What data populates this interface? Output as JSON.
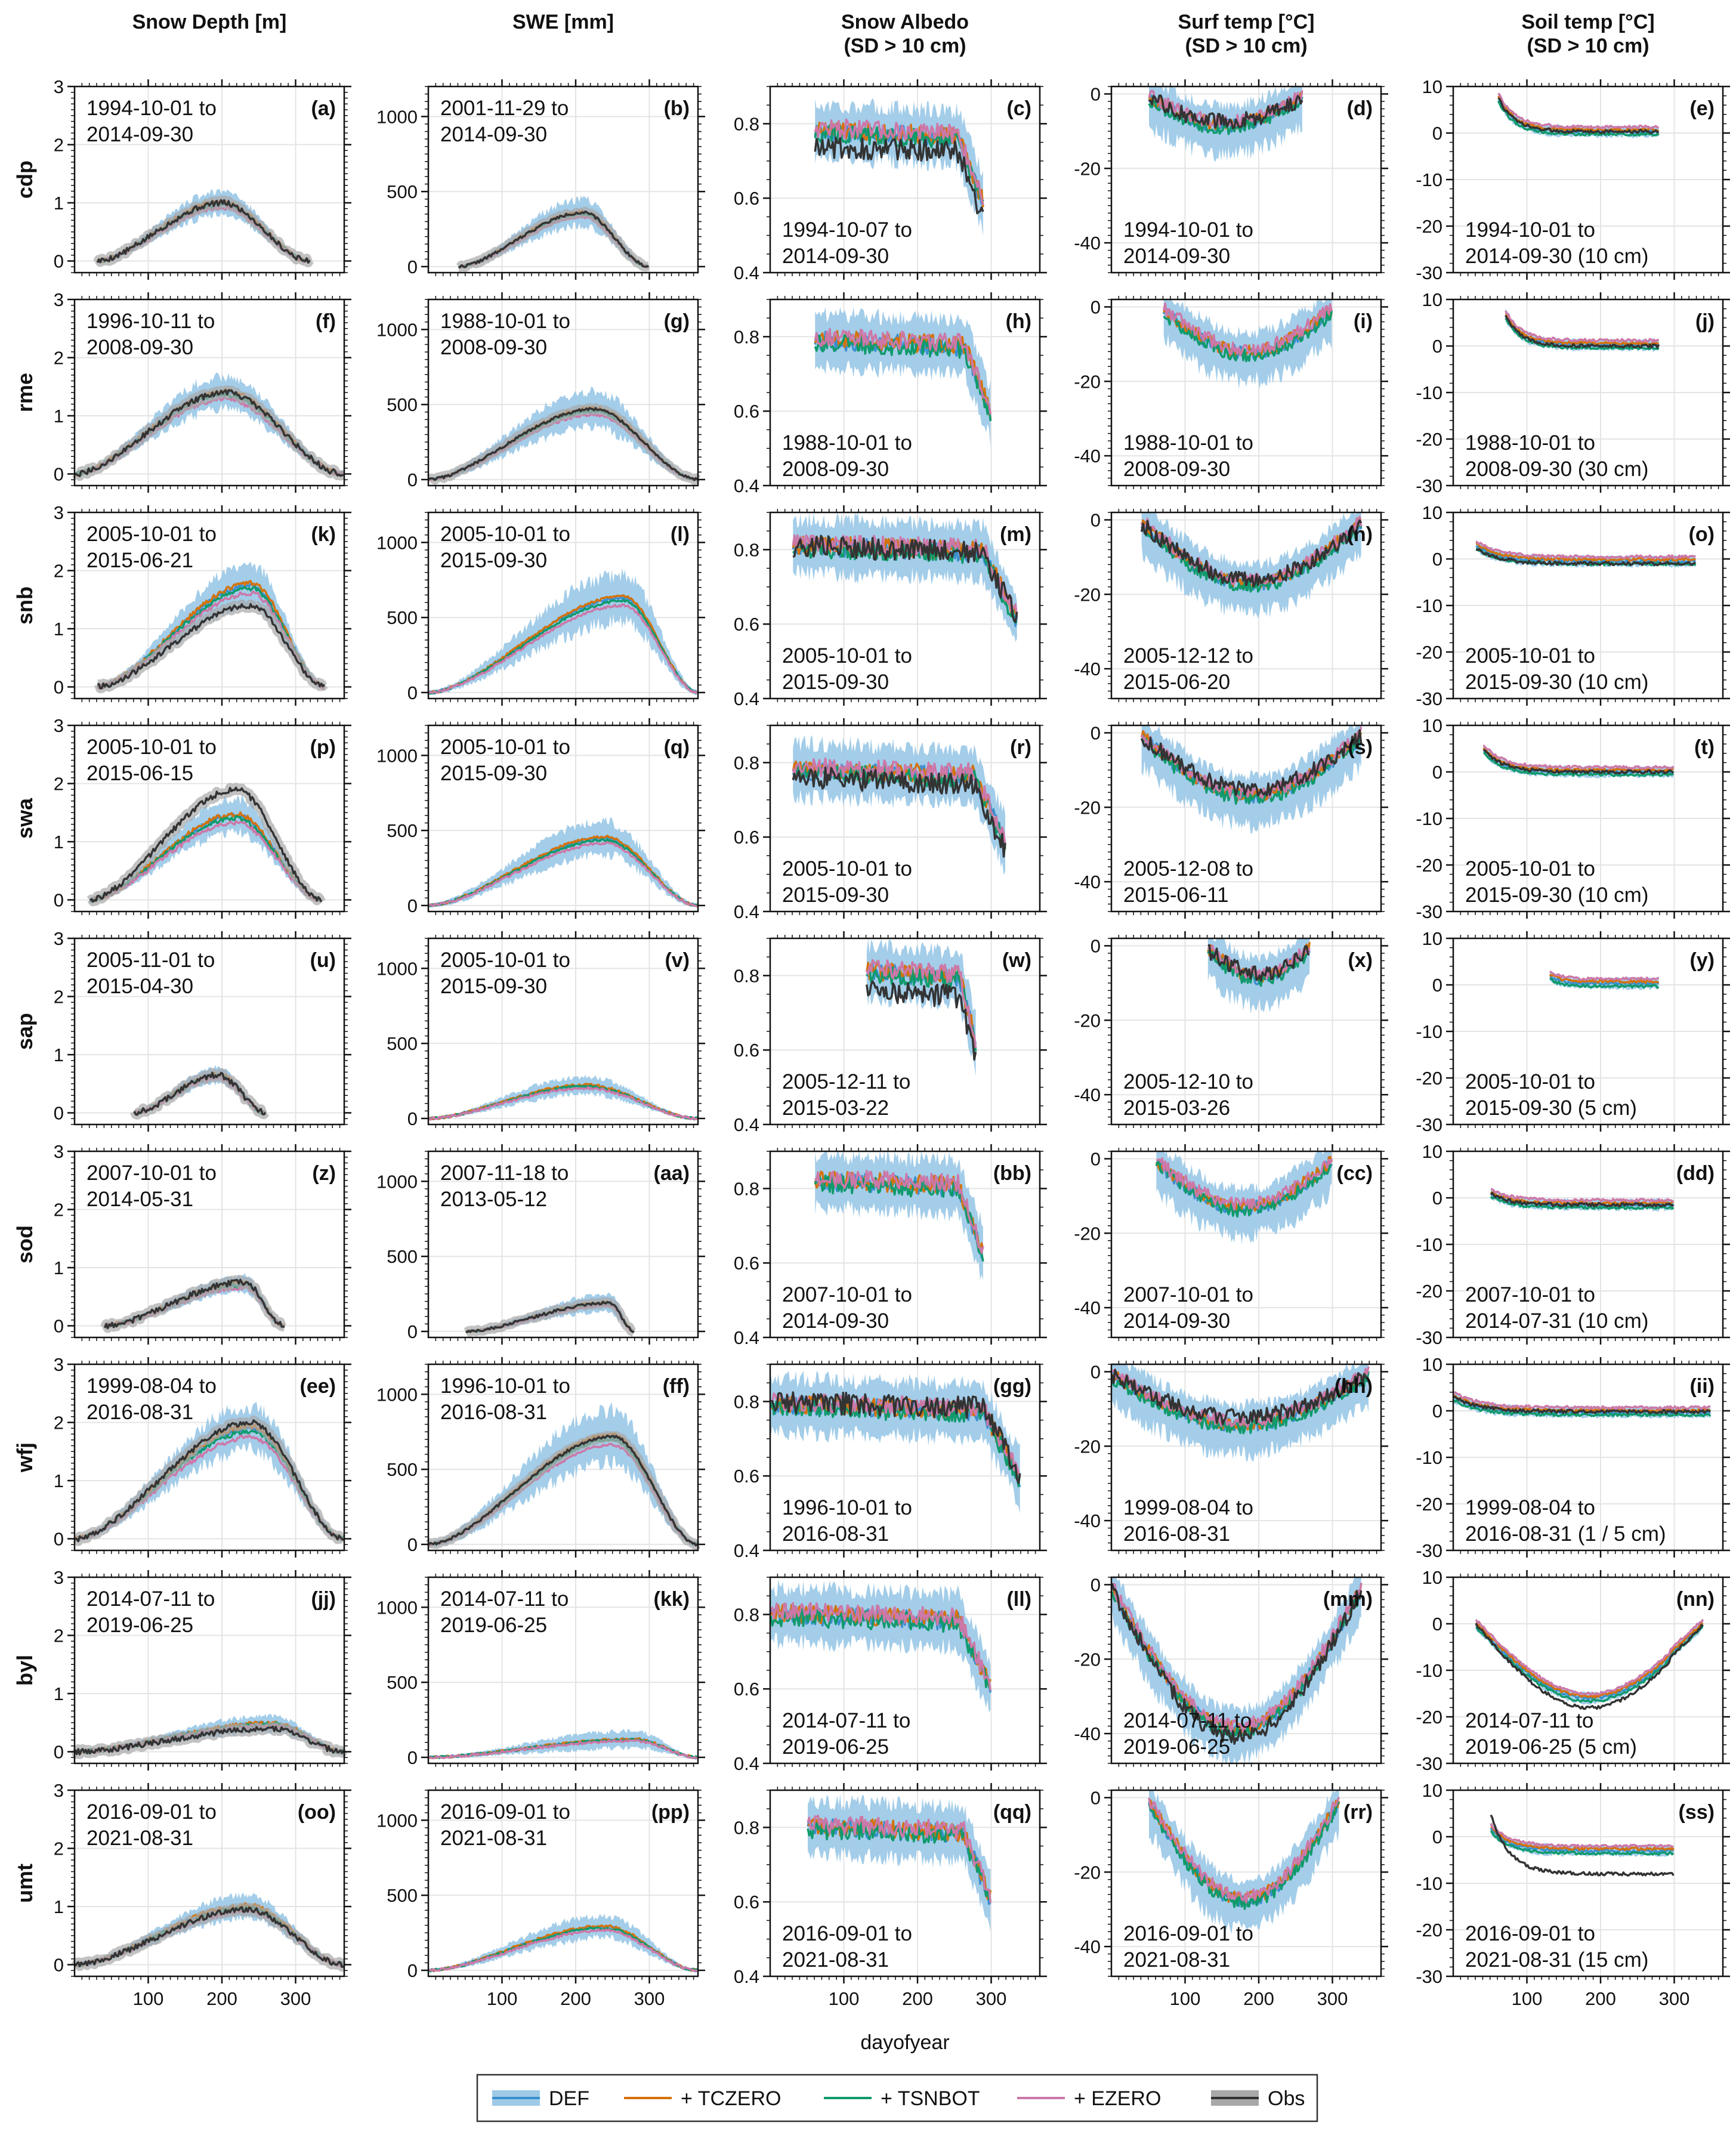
{
  "figure": {
    "xlabel": "dayofyear",
    "columns": [
      {
        "title": [
          "Snow Depth [m]"
        ],
        "ylim": [
          -0.2,
          3
        ],
        "yticks": [
          0,
          1,
          2,
          3
        ],
        "minor": 0.1
      },
      {
        "title": [
          "SWE [mm]"
        ],
        "ylim": [
          -40,
          1200
        ],
        "yticks": [
          0,
          500,
          1000
        ],
        "minor": 50
      },
      {
        "title": [
          "Snow Albedo",
          "(SD > 10 cm)"
        ],
        "ylim": [
          0.4,
          0.9
        ],
        "yticks": [
          0.4,
          0.6,
          0.8
        ],
        "minor": 0.05
      },
      {
        "title": [
          "Surf temp [°C]",
          "(SD > 10 cm)"
        ],
        "ylim": [
          -48,
          2
        ],
        "yticks": [
          -40,
          -20,
          0
        ],
        "minor": 2
      },
      {
        "title": [
          "Soil temp [°C]",
          "(SD > 10 cm)"
        ],
        "ylim": [
          -30,
          10
        ],
        "yticks": [
          -30,
          -20,
          -10,
          0,
          10
        ],
        "minor": 2
      }
    ],
    "xlim": [
      0,
      366
    ],
    "xticks": [
      100,
      200,
      300
    ],
    "legend": [
      {
        "label": "DEF",
        "color": "#3b8fcf",
        "band": "#9ecae8"
      },
      {
        "label": "+ TCZERO",
        "color": "#d4720c"
      },
      {
        "label": "+ TSNBOT",
        "color": "#109a6c"
      },
      {
        "label": "+ EZERO",
        "color": "#cc78a8"
      },
      {
        "label": "Obs",
        "color": "#333333",
        "band": "#a8a8a8"
      }
    ]
  },
  "chart_data": {
    "type": "line",
    "x_label": "dayofyear",
    "sites": [
      {
        "name": "cdp",
        "panels": [
          {
            "letter": "(a)",
            "period": [
              "1994-10-01 to",
              "2014-09-30"
            ],
            "start": 30,
            "peak_day": 200,
            "end": 320,
            "peak": 1.0,
            "obs": 1.0
          },
          {
            "letter": "(b)",
            "period": [
              "2001-11-29 to",
              "2014-09-30"
            ],
            "start": 40,
            "peak_day": 210,
            "end": 300,
            "peak": 360,
            "obs": 360
          },
          {
            "letter": "(c)",
            "period": [
              "1994-10-07 to",
              "2014-09-30"
            ],
            "start": 60,
            "end": 290,
            "level": 0.78,
            "obs": 0.74
          },
          {
            "letter": "(d)",
            "period": [
              "1994-10-01 to",
              "2014-09-30"
            ],
            "start": 50,
            "end": 260,
            "min": -8,
            "obs": -7
          },
          {
            "letter": "(e)",
            "period": [
              "1994-10-01 to",
              "2014-09-30 (10 cm)"
            ],
            "start": 60,
            "end": 280,
            "start_val": 8,
            "min": 0.3,
            "obs": 0.3
          }
        ]
      },
      {
        "name": "rme",
        "panels": [
          {
            "letter": "(f)",
            "period": [
              "1996-10-11 to",
              "2008-09-30"
            ],
            "start": 0,
            "peak_day": 205,
            "end": 366,
            "peak": 1.4,
            "obs": 1.4
          },
          {
            "letter": "(g)",
            "period": [
              "1988-10-01 to",
              "2008-09-30"
            ],
            "start": 0,
            "peak_day": 225,
            "end": 366,
            "peak": 470,
            "obs": 470
          },
          {
            "letter": "(h)",
            "period": [
              "1988-10-01 to",
              "2008-09-30"
            ],
            "start": 60,
            "end": 300,
            "level": 0.79,
            "obs": null
          },
          {
            "letter": "(i)",
            "period": [
              "1988-10-01 to",
              "2008-09-30"
            ],
            "start": 70,
            "end": 300,
            "min": -12,
            "obs": null
          },
          {
            "letter": "(j)",
            "period": [
              "1988-10-01 to",
              "2008-09-30 (30 cm)"
            ],
            "start": 70,
            "end": 280,
            "start_val": 7,
            "min": 0.2,
            "obs": 0.0
          }
        ]
      },
      {
        "name": "snb",
        "panels": [
          {
            "letter": "(k)",
            "period": [
              "2005-10-01 to",
              "2015-06-21"
            ],
            "start": 30,
            "peak_day": 240,
            "end": 340,
            "peak": 1.75,
            "obs": 1.4
          },
          {
            "letter": "(l)",
            "period": [
              "2005-10-01 to",
              "2015-09-30"
            ],
            "start": 0,
            "peak_day": 265,
            "end": 366,
            "peak": 630,
            "obs": null
          },
          {
            "letter": "(m)",
            "period": [
              "2005-10-01 to",
              "2015-09-30"
            ],
            "start": 30,
            "end": 335,
            "level": 0.81,
            "obs": 0.81
          },
          {
            "letter": "(n)",
            "period": [
              "2005-12-12 to",
              "2015-06-20"
            ],
            "start": 40,
            "end": 340,
            "min": -17,
            "obs": -16
          },
          {
            "letter": "(o)",
            "period": [
              "2005-10-01 to",
              "2015-09-30 (10 cm)"
            ],
            "start": 30,
            "end": 330,
            "start_val": 3,
            "min": -0.5,
            "obs": -1
          }
        ]
      },
      {
        "name": "swa",
        "panels": [
          {
            "letter": "(p)",
            "period": [
              "2005-10-01 to",
              "2015-06-15"
            ],
            "start": 20,
            "peak_day": 220,
            "end": 335,
            "peak": 1.45,
            "obs": 1.9
          },
          {
            "letter": "(q)",
            "period": [
              "2005-10-01 to",
              "2015-09-30"
            ],
            "start": 0,
            "peak_day": 240,
            "end": 366,
            "peak": 450,
            "obs": null
          },
          {
            "letter": "(r)",
            "period": [
              "2005-10-01 to",
              "2015-09-30"
            ],
            "start": 30,
            "end": 320,
            "level": 0.78,
            "obs": 0.76
          },
          {
            "letter": "(s)",
            "period": [
              "2005-12-08 to",
              "2015-06-11"
            ],
            "start": 40,
            "end": 340,
            "min": -17,
            "obs": -15
          },
          {
            "letter": "(t)",
            "period": [
              "2005-10-01 to",
              "2015-09-30 (10 cm)"
            ],
            "start": 40,
            "end": 300,
            "start_val": 5,
            "min": 0.0,
            "obs": 0.0
          }
        ]
      },
      {
        "name": "sap",
        "panels": [
          {
            "letter": "(u)",
            "period": [
              "2005-11-01 to",
              "2015-04-30"
            ],
            "start": 80,
            "peak_day": 195,
            "end": 260,
            "peak": 0.65,
            "obs": 0.65
          },
          {
            "letter": "(v)",
            "period": [
              "2005-10-01 to",
              "2015-09-30"
            ],
            "start": 0,
            "peak_day": 215,
            "end": 366,
            "peak": 220,
            "obs": null
          },
          {
            "letter": "(w)",
            "period": [
              "2005-12-11 to",
              "2015-03-22"
            ],
            "start": 130,
            "end": 280,
            "level": 0.81,
            "obs": 0.76
          },
          {
            "letter": "(x)",
            "period": [
              "2005-12-10 to",
              "2015-03-26"
            ],
            "start": 130,
            "end": 270,
            "min": -8,
            "obs": -7
          },
          {
            "letter": "(y)",
            "period": [
              "2005-10-01 to",
              "2015-09-30 (5 cm)"
            ],
            "start": 130,
            "end": 280,
            "start_val": 2,
            "min": 0.3,
            "obs": null
          }
        ]
      },
      {
        "name": "sod",
        "panels": [
          {
            "letter": "(z)",
            "period": [
              "2007-10-01 to",
              "2014-05-31"
            ],
            "start": 40,
            "peak_day": 230,
            "end": 285,
            "peak": 0.72,
            "obs": 0.75
          },
          {
            "letter": "(aa)",
            "period": [
              "2007-11-18 to",
              "2013-05-12"
            ],
            "start": 50,
            "peak_day": 245,
            "end": 280,
            "peak": 190,
            "obs": 190
          },
          {
            "letter": "(bb)",
            "period": [
              "2007-10-01 to",
              "2014-09-30"
            ],
            "start": 60,
            "end": 290,
            "level": 0.82,
            "obs": null
          },
          {
            "letter": "(cc)",
            "period": [
              "2007-10-01 to",
              "2014-09-30"
            ],
            "start": 60,
            "end": 300,
            "min": -13,
            "obs": null
          },
          {
            "letter": "(dd)",
            "period": [
              "2007-10-01 to",
              "2014-07-31 (10 cm)"
            ],
            "start": 50,
            "end": 300,
            "start_val": 1,
            "min": -1.5,
            "obs": -1.5
          }
        ]
      },
      {
        "name": "wfj",
        "panels": [
          {
            "letter": "(ee)",
            "period": [
              "1999-08-04 to",
              "2016-08-31"
            ],
            "start": 0,
            "peak_day": 240,
            "end": 366,
            "peak": 1.9,
            "obs": 2.0
          },
          {
            "letter": "(ff)",
            "period": [
              "1996-10-01 to",
              "2016-08-31"
            ],
            "start": 0,
            "peak_day": 250,
            "end": 366,
            "peak": 720,
            "obs": 720
          },
          {
            "letter": "(gg)",
            "period": [
              "1996-10-01 to",
              "2016-08-31"
            ],
            "start": 0,
            "end": 340,
            "level": 0.79,
            "obs": 0.8
          },
          {
            "letter": "(hh)",
            "period": [
              "1999-08-04 to",
              "2016-08-31"
            ],
            "start": 0,
            "end": 350,
            "min": -14,
            "obs": -12
          },
          {
            "letter": "(ii)",
            "period": [
              "1999-08-04 to",
              "2016-08-31 (1 / 5 cm)"
            ],
            "start": 0,
            "end": 350,
            "start_val": 3,
            "min": -0.3,
            "obs": -0.2
          }
        ]
      },
      {
        "name": "byl",
        "panels": [
          {
            "letter": "(jj)",
            "period": [
              "2014-07-11 to",
              "2019-06-25"
            ],
            "start": 0,
            "peak_day": 270,
            "end": 366,
            "peak": 0.48,
            "obs": 0.4
          },
          {
            "letter": "(kk)",
            "period": [
              "2014-07-11 to",
              "2019-06-25"
            ],
            "start": 0,
            "peak_day": 280,
            "end": 366,
            "peak": 120,
            "obs": null
          },
          {
            "letter": "(ll)",
            "period": [
              "2014-07-11 to",
              "2019-06-25"
            ],
            "start": 0,
            "end": 300,
            "level": 0.8,
            "obs": null
          },
          {
            "letter": "(mm)",
            "period": [
              "2014-07-11 to",
              "2019-06-25"
            ],
            "start": 0,
            "end": 340,
            "min": -40,
            "obs": -42
          },
          {
            "letter": "(nn)",
            "period": [
              "2014-07-11 to",
              "2019-06-25 (5 cm)"
            ],
            "start": 30,
            "end": 340,
            "start_val": 0,
            "min": -16,
            "obs": -18
          }
        ]
      },
      {
        "name": "umt",
        "panels": [
          {
            "letter": "(oo)",
            "period": [
              "2016-09-01 to",
              "2021-08-31"
            ],
            "start": 0,
            "peak_day": 235,
            "end": 366,
            "peak": 1.0,
            "obs": 0.95
          },
          {
            "letter": "(pp)",
            "period": [
              "2016-09-01 to",
              "2021-08-31"
            ],
            "start": 0,
            "peak_day": 240,
            "end": 366,
            "peak": 290,
            "obs": null
          },
          {
            "letter": "(qq)",
            "period": [
              "2016-09-01 to",
              "2021-08-31"
            ],
            "start": 50,
            "end": 300,
            "level": 0.8,
            "obs": null
          },
          {
            "letter": "(rr)",
            "period": [
              "2016-09-01 to",
              "2021-08-31"
            ],
            "start": 50,
            "end": 310,
            "min": -28,
            "obs": null
          },
          {
            "letter": "(ss)",
            "period": [
              "2016-09-01 to",
              "2021-08-31 (15 cm)"
            ],
            "start": 50,
            "end": 300,
            "start_val": 2,
            "min": -3,
            "obs": -8
          }
        ]
      }
    ]
  }
}
